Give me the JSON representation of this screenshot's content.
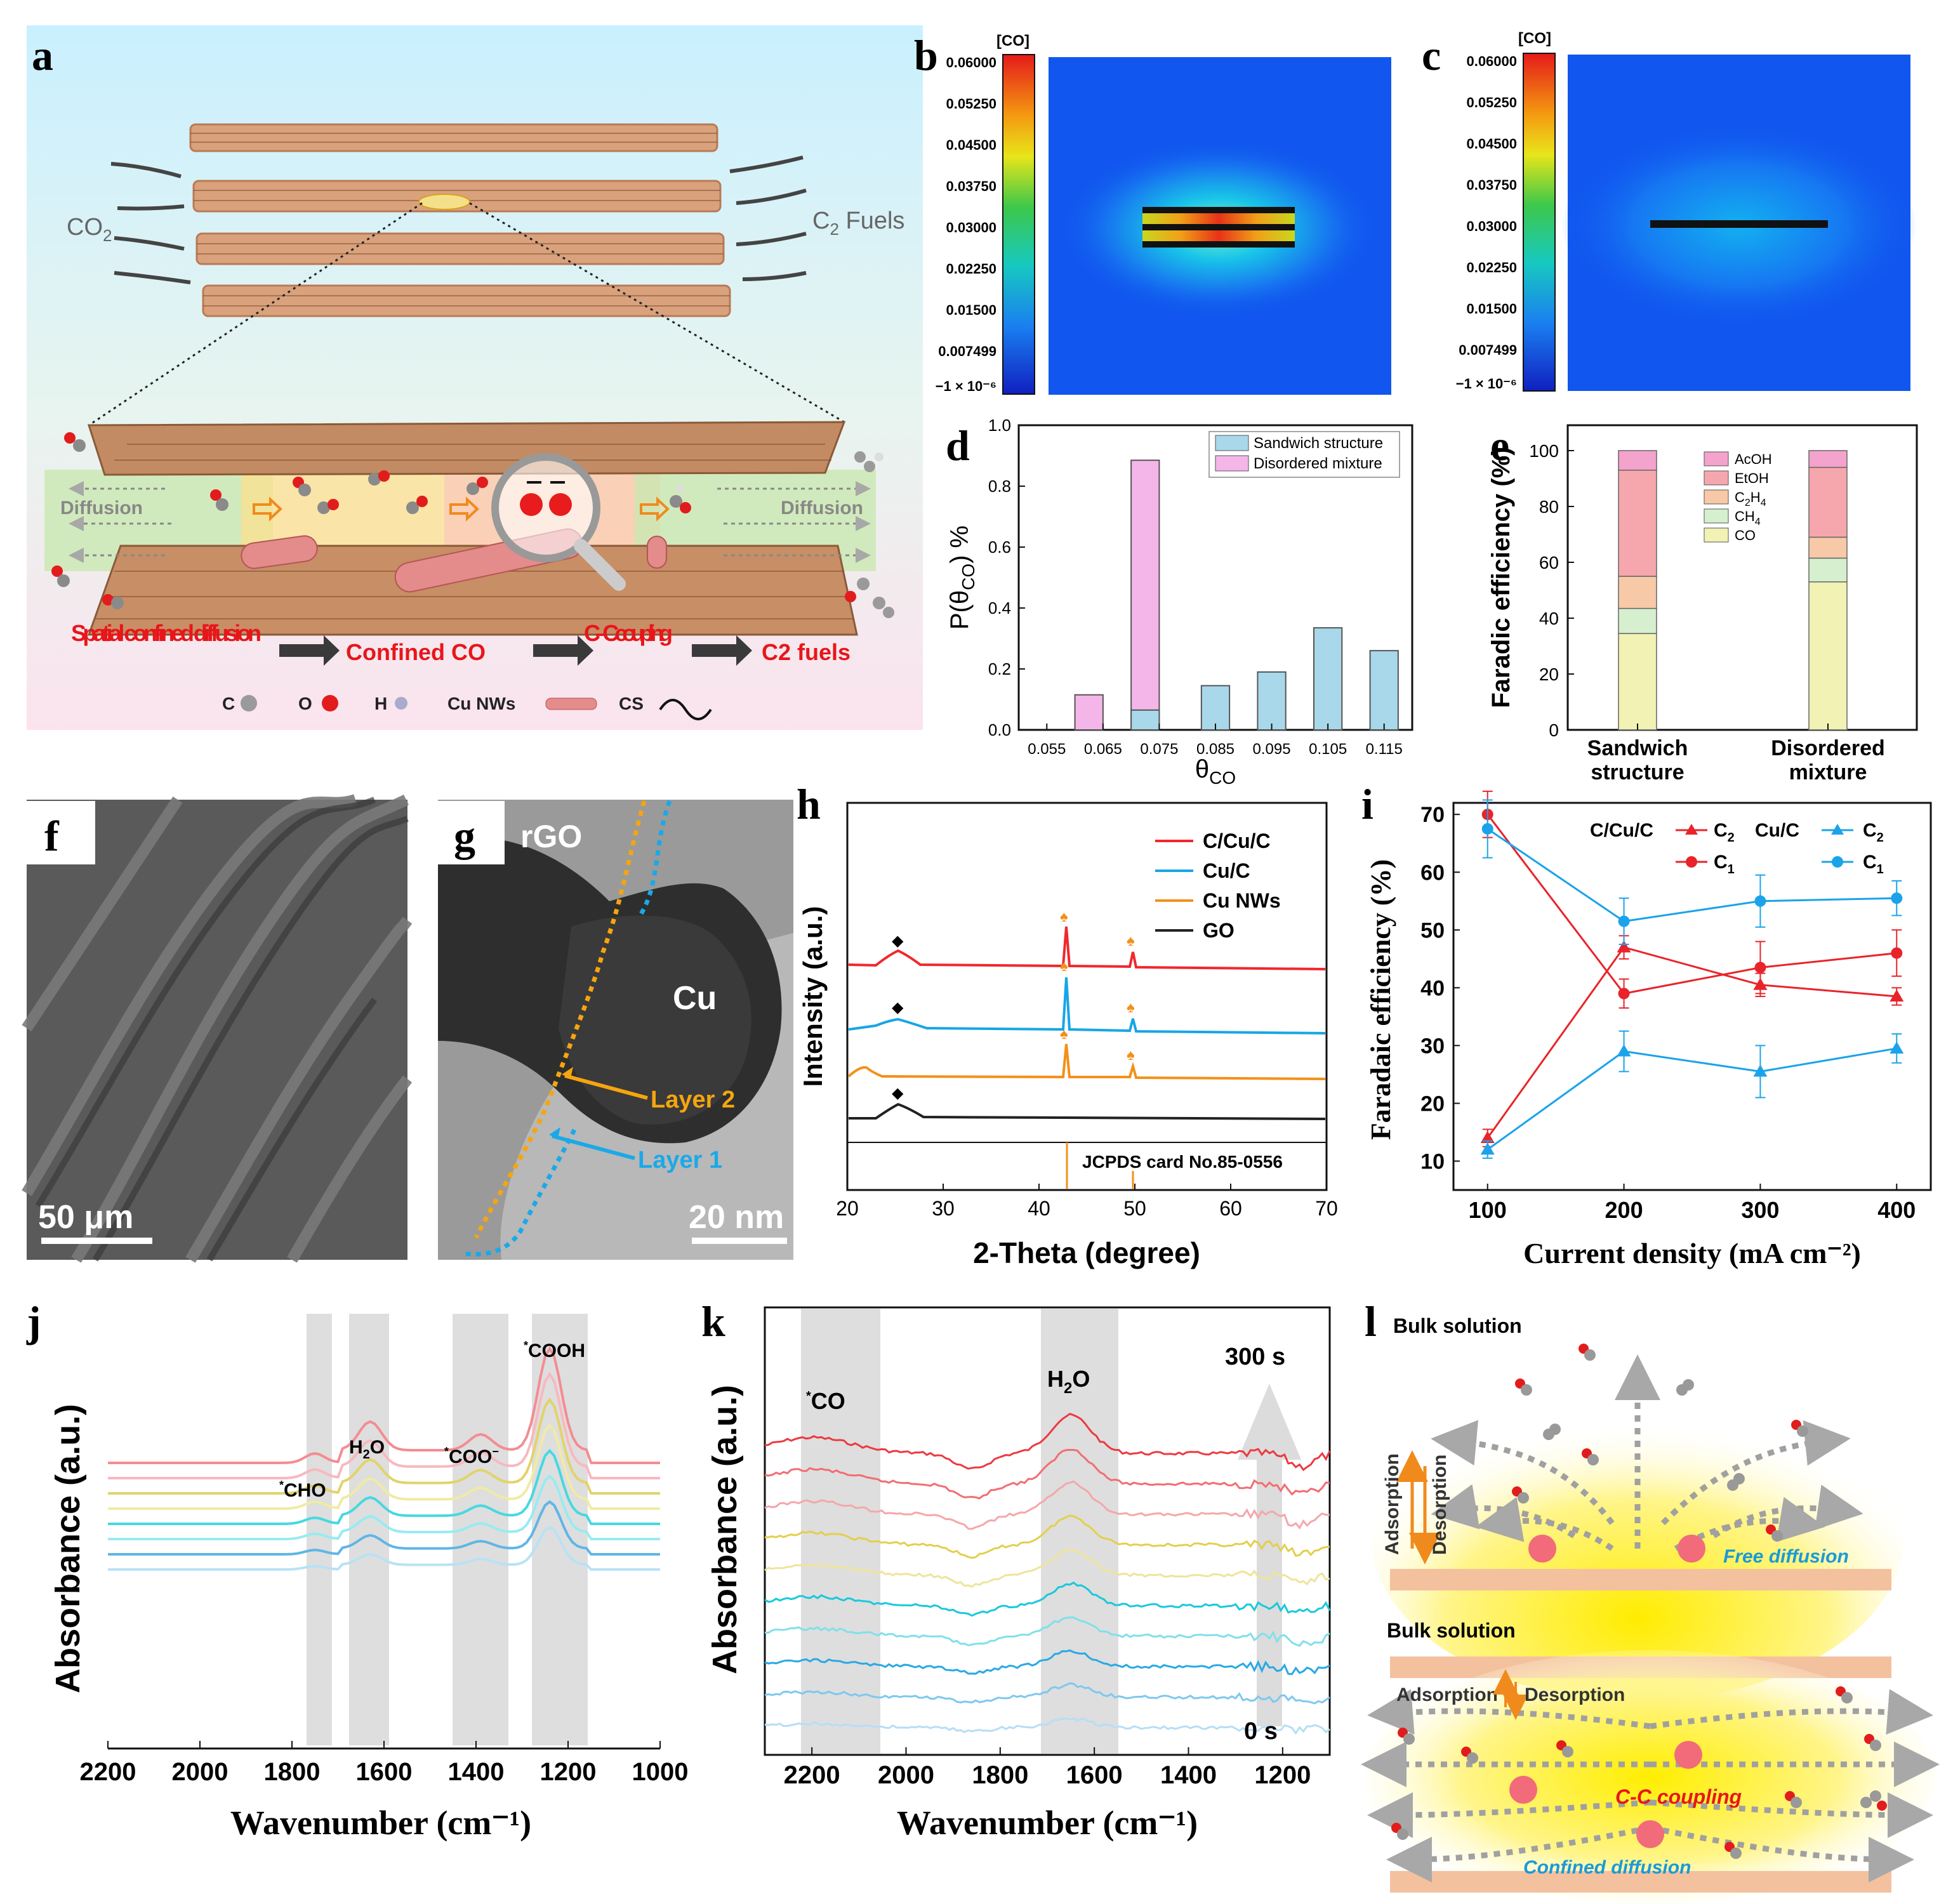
{
  "panel_letters": {
    "a": "a",
    "b": "b",
    "c": "c",
    "d": "d",
    "e": "e",
    "f": "f",
    "g": "g",
    "h": "h",
    "i": "i",
    "j": "j",
    "k": "k",
    "l": "l"
  },
  "panel_a": {
    "co2": "CO",
    "co2_sub": "2",
    "c2_fuels": "C",
    "c2_fuels_sub": "2",
    "c2_fuels_rest": " Fuels",
    "diffusion": "Diffusion",
    "flow": [
      "Spatial confined diffusion",
      "Confined CO",
      "C–C coupling",
      "C2 fuels"
    ],
    "legend": [
      "C",
      "O",
      "H",
      "Cu NWs",
      "CS"
    ],
    "colors": {
      "flow_text": "#e8161a",
      "arrow": "#3a3a3a",
      "bg_top": "#c9f0ff",
      "bg_bottom": "#fbe3ee"
    }
  },
  "colorbar": {
    "title": "[CO]",
    "ticks": [
      "0.06000",
      "0.05250",
      "0.04500",
      "0.03750",
      "0.03000",
      "0.02250",
      "0.01500",
      "0.007499",
      "−1 × 10⁻⁶"
    ]
  },
  "chart_data": [
    {
      "panel": "d",
      "type": "bar",
      "xlabel": "θCO",
      "ylabel": "P(θCO) %",
      "xlim": [
        0.05,
        0.12
      ],
      "ylim": [
        0,
        1.0
      ],
      "xticks": [
        "0.055",
        "0.065",
        "0.075",
        "0.085",
        "0.095",
        "0.105",
        "0.115"
      ],
      "yticks": [
        "0.0",
        "0.2",
        "0.4",
        "0.6",
        "0.8",
        "1.0"
      ],
      "series": [
        {
          "name": "Sandwich structure",
          "color": "#a8d8ea",
          "x": [
            0.075,
            0.085,
            0.095,
            0.105,
            0.115
          ],
          "values": [
            0.065,
            0.145,
            0.19,
            0.335,
            0.26
          ]
        },
        {
          "name": "Disordered mixture",
          "color": "#f4b6e8",
          "x": [
            0.065,
            0.075
          ],
          "values": [
            0.115,
            0.885
          ]
        }
      ]
    },
    {
      "panel": "e",
      "type": "bar",
      "ylabel": "Faradic efficiency (%)",
      "ylim": [
        0,
        100
      ],
      "yticks": [
        "0",
        "20",
        "40",
        "60",
        "80",
        "100"
      ],
      "categories": [
        "Sandwich structure",
        "Disordered mixture"
      ],
      "series": [
        {
          "name": "CO",
          "color": "#f1f2b3",
          "values": [
            34.5,
            53
          ]
        },
        {
          "name": "CH4",
          "color": "#d5efcf",
          "values": [
            9,
            8.5
          ]
        },
        {
          "name": "C2H4",
          "color": "#f7c9a7",
          "values": [
            11.5,
            7.5
          ]
        },
        {
          "name": "EtOH",
          "color": "#f5a7ad",
          "values": [
            38,
            25
          ]
        },
        {
          "name": "AcOH",
          "color": "#f3a3cc",
          "values": [
            7,
            6
          ]
        }
      ]
    },
    {
      "panel": "h",
      "type": "line",
      "xlabel": "2-Theta (degree)",
      "ylabel": "Intensity (a.u.)",
      "xlim": [
        20,
        70
      ],
      "xticks": [
        "20",
        "30",
        "40",
        "50",
        "60",
        "70"
      ],
      "series": [
        {
          "name": "C/Cu/C",
          "color": "#f0282d"
        },
        {
          "name": "Cu/C",
          "color": "#17a6e6"
        },
        {
          "name": "Cu NWs",
          "color": "#f39019"
        },
        {
          "name": "GO",
          "color": "#222222"
        }
      ],
      "annotation": "JCPDS card No.85-0556",
      "reference_peaks": [
        43.3,
        50.4
      ]
    },
    {
      "panel": "i",
      "type": "line",
      "xlabel": "Current density (mA cm⁻²)",
      "ylabel": "Faradaic efficiency (%)",
      "x": [
        100,
        200,
        300,
        400
      ],
      "xlim": [
        75,
        425
      ],
      "ylim": [
        5,
        72
      ],
      "xticks": [
        "100",
        "200",
        "300",
        "400"
      ],
      "yticks": [
        "10",
        "20",
        "30",
        "40",
        "50",
        "60",
        "70"
      ],
      "series": [
        {
          "name": "C/Cu/C C2",
          "color": "#e8242a",
          "marker": "triangle",
          "values": [
            14,
            47,
            40.5,
            38.5
          ],
          "err": [
            1.5,
            2,
            2,
            1.5
          ]
        },
        {
          "name": "C/Cu/C C1",
          "color": "#e8242a",
          "marker": "circle",
          "values": [
            70,
            39,
            43.5,
            46
          ],
          "err": [
            4,
            2.5,
            4.5,
            4
          ]
        },
        {
          "name": "Cu/C C2",
          "color": "#1ba3ea",
          "marker": "triangle",
          "values": [
            12,
            29,
            25.5,
            29.5
          ],
          "err": [
            1.5,
            3.5,
            4.5,
            2.5
          ]
        },
        {
          "name": "Cu/C C1",
          "color": "#1ba3ea",
          "marker": "circle",
          "values": [
            67.5,
            51.5,
            55,
            55.5
          ],
          "err": [
            5,
            4,
            4.5,
            3
          ]
        }
      ],
      "legend_labels": {
        "ccuc": "C/Cu/C",
        "cuc": "Cu/C",
        "c2": "C",
        "c2_sub": "2",
        "c1": "C",
        "c1_sub": "1"
      }
    },
    {
      "panel": "j",
      "type": "line",
      "xlabel": "Wavenumber (cm⁻¹)",
      "ylabel": "Absorbance (a.u.)",
      "xlim": [
        2200,
        1000
      ],
      "xticks": [
        "2200",
        "2000",
        "1800",
        "1600",
        "1400",
        "1200",
        "1000"
      ],
      "bands": [
        "*CHO",
        "H2O",
        "*COO⁻",
        "*COOH"
      ],
      "series_colors": [
        "#f48c92",
        "#f8b8bf",
        "#e2d36a",
        "#f0eba4",
        "#47d8e0",
        "#98ebf0",
        "#5fb6e6",
        "#b8e2f5"
      ]
    },
    {
      "panel": "k",
      "type": "line",
      "xlabel": "Wavenumber (cm⁻¹)",
      "ylabel": "Absorbance (a.u.)",
      "xlim": [
        2300,
        1100
      ],
      "xticks": [
        "2200",
        "2000",
        "1800",
        "1600",
        "1400",
        "1200"
      ],
      "bands": [
        "*CO",
        "H2O"
      ],
      "time_top": "300 s",
      "time_bottom": "0 s",
      "series_colors": [
        "#ec3a40",
        "#f26d72",
        "#f4a7ab",
        "#e3cf4d",
        "#eee49a",
        "#18c9db",
        "#80e0ea",
        "#28a9e4",
        "#7ec8ef",
        "#b6def5"
      ]
    }
  ],
  "panel_f": {
    "scale": "50 μm"
  },
  "panel_g": {
    "rgo": "rGO",
    "cu": "Cu",
    "layer2": "Layer 2",
    "layer1": "Layer 1",
    "scale": "20 nm"
  },
  "panel_h_text": {
    "annot": "JCPDS card No.85-0556"
  },
  "panel_l": {
    "bulk1": "Bulk solution",
    "bulk2": "Bulk solution",
    "adsorption": "Adsorption",
    "desorption": "Desorption",
    "free": "Free diffusion",
    "confined": "Confined diffusion",
    "cc": "C-C coupling"
  },
  "e_cats": {
    "s1": "Sandwich",
    "s2": "structure",
    "d1": "Disordered",
    "d2": "mixture"
  }
}
